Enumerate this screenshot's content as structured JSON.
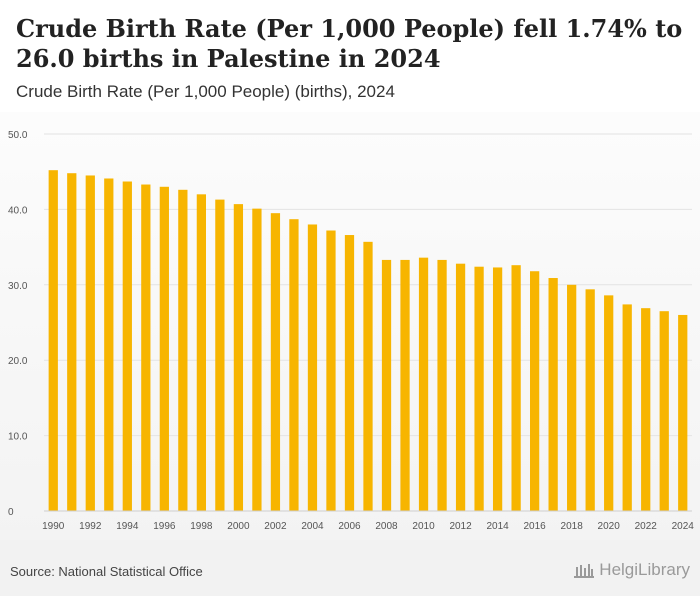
{
  "header": {
    "title": "Crude Birth Rate (Per 1,000 People) fell 1.74% to 26.0 births in Palestine in 2024",
    "subtitle": "Crude Birth Rate (Per 1,000 People) (births), 2024"
  },
  "footer": {
    "source": "Source: National Statistical Office",
    "logo_text": "HelgiLibrary"
  },
  "colors": {
    "bar": "#F7B500",
    "grid": "#e3e3e3",
    "axis_text": "#555555"
  },
  "chart_data": {
    "type": "bar",
    "title": "Crude Birth Rate (Per 1,000 People) fell 1.74% to 26.0 births in Palestine in 2024",
    "subtitle": "Crude Birth Rate (Per 1,000 People) (births), 2024",
    "xlabel": "",
    "ylabel": "",
    "ylim": [
      0,
      50
    ],
    "yticks": [
      "0",
      "10.0",
      "20.0",
      "30.0",
      "40.0",
      "50.0"
    ],
    "ytick_values": [
      0,
      10,
      20,
      30,
      40,
      50
    ],
    "categories": [
      "1990",
      "1991",
      "1992",
      "1993",
      "1994",
      "1995",
      "1996",
      "1997",
      "1998",
      "1999",
      "2000",
      "2001",
      "2002",
      "2003",
      "2004",
      "2005",
      "2006",
      "2007",
      "2008",
      "2009",
      "2010",
      "2011",
      "2012",
      "2013",
      "2014",
      "2015",
      "2016",
      "2017",
      "2018",
      "2019",
      "2020",
      "2021",
      "2022",
      "2023",
      "2024"
    ],
    "xtick_labels": [
      "1990",
      "1992",
      "1994",
      "1996",
      "1998",
      "2000",
      "2002",
      "2004",
      "2006",
      "2008",
      "2010",
      "2012",
      "2014",
      "2016",
      "2018",
      "2020",
      "2022",
      "2024"
    ],
    "values": [
      45.2,
      44.8,
      44.5,
      44.1,
      43.7,
      43.3,
      43.0,
      42.6,
      42.0,
      41.3,
      40.7,
      40.1,
      39.5,
      38.7,
      38.0,
      37.2,
      36.6,
      35.7,
      33.3,
      33.3,
      33.6,
      33.3,
      32.8,
      32.4,
      32.3,
      32.6,
      31.8,
      30.9,
      30.0,
      29.4,
      28.6,
      27.4,
      26.9,
      26.5,
      26.0
    ],
    "grid": true,
    "legend": "none"
  }
}
